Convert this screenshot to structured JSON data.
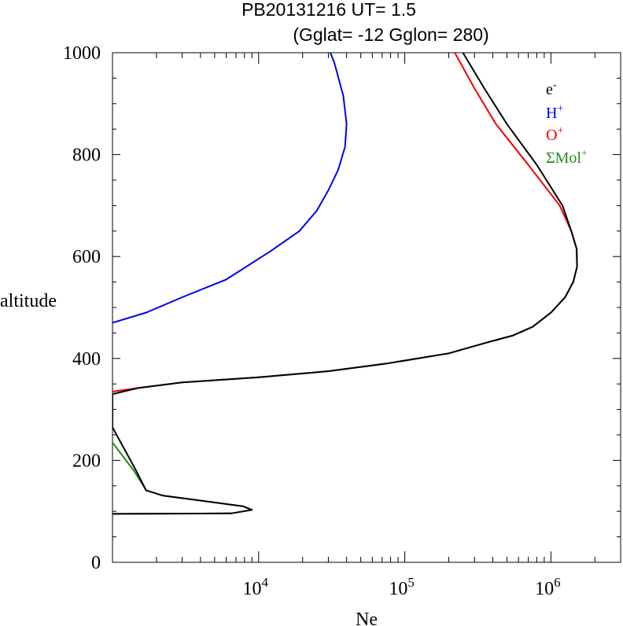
{
  "title": {
    "line1": "PB20131216   UT=  1.5",
    "line2": "(Gglat= -12   Gglon=  280)"
  },
  "chart_data": {
    "type": "line",
    "title": "PB20131216   UT=  1.5 (Gglat= -12   Gglon=  280)",
    "xlabel": "Ne",
    "ylabel": "altitude",
    "x_scale": "log",
    "xlim": [
      1000,
      3000000
    ],
    "ylim": [
      0,
      1000
    ],
    "x_ticks": [
      {
        "value": 10000,
        "base": "10",
        "exp": "4"
      },
      {
        "value": 100000,
        "base": "10",
        "exp": "5"
      },
      {
        "value": 1000000,
        "base": "10",
        "exp": "6"
      }
    ],
    "y_ticks": [
      0,
      200,
      400,
      600,
      800,
      1000
    ],
    "y_tick_labels": [
      "0",
      "200",
      "400",
      "600",
      "800",
      "1000"
    ],
    "grid": false,
    "legend_position": "top-right",
    "series": [
      {
        "name": "e",
        "sup": "-",
        "color": "#000000",
        "points": [
          [
            1000,
            95
          ],
          [
            6500,
            96
          ],
          [
            9000,
            103
          ],
          [
            7800,
            110
          ],
          [
            2200,
            131
          ],
          [
            1700,
            141
          ],
          [
            1450,
            180
          ],
          [
            1000,
            265
          ],
          [
            1000,
            330
          ],
          [
            1500,
            342
          ],
          [
            3000,
            353
          ],
          [
            10000,
            363
          ],
          [
            30000,
            375
          ],
          [
            75000,
            390
          ],
          [
            200000,
            410
          ],
          [
            350000,
            430
          ],
          [
            550000,
            445
          ],
          [
            750000,
            462
          ],
          [
            1000000,
            490
          ],
          [
            1250000,
            520
          ],
          [
            1420000,
            550
          ],
          [
            1510000,
            580
          ],
          [
            1500000,
            615
          ],
          [
            1380000,
            650
          ],
          [
            1200000,
            700
          ],
          [
            800000,
            780
          ],
          [
            500000,
            860
          ],
          [
            350000,
            930
          ],
          [
            250000,
            1000
          ]
        ]
      },
      {
        "name": "H",
        "sup": "+",
        "color": "#0000ee",
        "points": [
          [
            1000,
            470
          ],
          [
            1700,
            490
          ],
          [
            3000,
            520
          ],
          [
            6000,
            555
          ],
          [
            12000,
            610
          ],
          [
            19000,
            650
          ],
          [
            25000,
            690
          ],
          [
            30000,
            730
          ],
          [
            35000,
            770
          ],
          [
            39000,
            815
          ],
          [
            40000,
            860
          ],
          [
            38000,
            915
          ],
          [
            33000,
            980
          ],
          [
            31000,
            1000
          ]
        ]
      },
      {
        "name": "O",
        "sup": "+",
        "color": "#ee0000",
        "points": [
          [
            1000,
            335
          ],
          [
            1500,
            342
          ],
          [
            3000,
            353
          ],
          [
            10000,
            363
          ],
          [
            30000,
            375
          ],
          [
            75000,
            390
          ],
          [
            200000,
            410
          ],
          [
            350000,
            430
          ],
          [
            550000,
            445
          ],
          [
            750000,
            462
          ],
          [
            1000000,
            490
          ],
          [
            1250000,
            520
          ],
          [
            1420000,
            550
          ],
          [
            1510000,
            580
          ],
          [
            1500000,
            615
          ],
          [
            1380000,
            650
          ],
          [
            1150000,
            700
          ],
          [
            700000,
            780
          ],
          [
            420000,
            860
          ],
          [
            300000,
            930
          ],
          [
            220000,
            1000
          ]
        ]
      },
      {
        "name": "ΣMol",
        "sup": "+",
        "color": "#228b22",
        "points": [
          [
            1000,
            95
          ],
          [
            6500,
            96
          ],
          [
            9000,
            103
          ],
          [
            7800,
            110
          ],
          [
            2200,
            131
          ],
          [
            1700,
            141
          ],
          [
            1400,
            180
          ],
          [
            1000,
            235
          ]
        ]
      }
    ]
  }
}
